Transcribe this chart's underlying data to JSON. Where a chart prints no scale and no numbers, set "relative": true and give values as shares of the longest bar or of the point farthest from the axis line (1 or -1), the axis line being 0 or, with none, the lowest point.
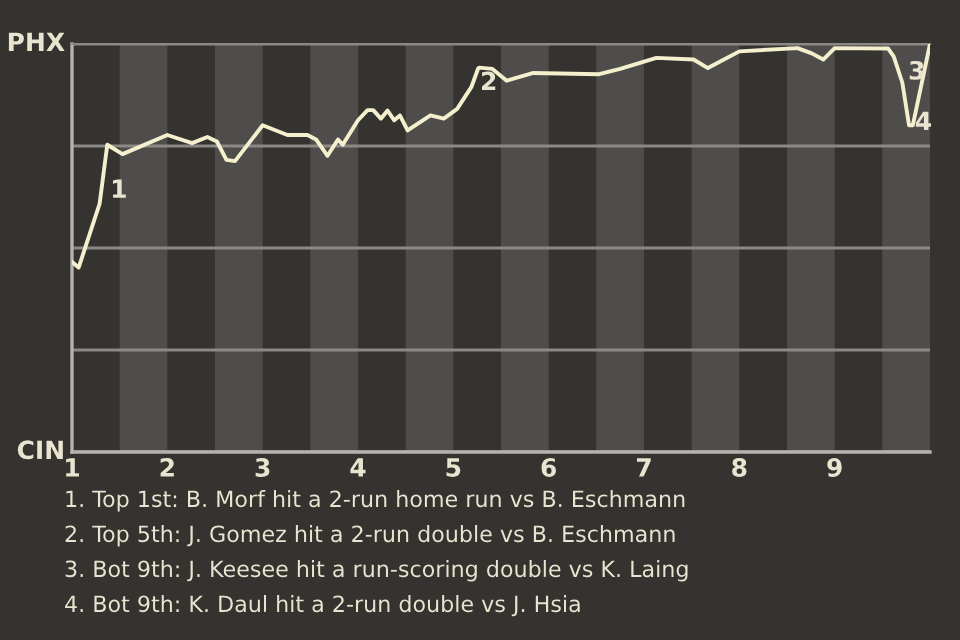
{
  "chart_data": {
    "type": "line",
    "x": [
      1.0,
      1.07,
      1.29,
      1.37,
      1.53,
      2.0,
      2.26,
      2.42,
      2.52,
      2.62,
      2.71,
      3.0,
      3.26,
      3.47,
      3.56,
      3.68,
      3.79,
      3.84,
      4.0,
      4.1,
      4.16,
      4.24,
      4.31,
      4.38,
      4.44,
      4.52,
      4.76,
      4.9,
      5.04,
      5.19,
      5.26,
      5.27,
      5.41,
      5.56,
      5.84,
      6.53,
      6.75,
      7.13,
      7.52,
      7.67,
      8.0,
      8.61,
      8.76,
      8.88,
      9.0,
      9.56,
      9.62,
      9.71,
      9.78,
      9.82,
      10.0
    ],
    "series": [
      {
        "color": "#f4efcc",
        "values": [
          0.466,
          0.452,
          0.609,
          0.753,
          0.73,
          0.777,
          0.757,
          0.772,
          0.761,
          0.716,
          0.713,
          0.801,
          0.777,
          0.777,
          0.766,
          0.726,
          0.766,
          0.753,
          0.813,
          0.838,
          0.838,
          0.817,
          0.837,
          0.813,
          0.825,
          0.788,
          0.825,
          0.817,
          0.841,
          0.895,
          0.94,
          0.942,
          0.939,
          0.91,
          0.929,
          0.926,
          0.939,
          0.966,
          0.962,
          0.941,
          0.982,
          0.99,
          0.977,
          0.962,
          0.99,
          0.989,
          0.969,
          0.905,
          0.801,
          0.801,
          1
        ]
      }
    ],
    "xlim": [
      1,
      10
    ],
    "relative": true,
    "xticks": [
      1,
      2,
      3,
      4,
      5,
      6,
      7,
      8,
      9
    ],
    "grid": "y",
    "marker": "none",
    "line_style": "solid",
    "bands": [
      {
        "axis": "x",
        "from": 1.5,
        "to": 2,
        "color": "#4e4d4b"
      },
      {
        "axis": "x",
        "from": 2.5,
        "to": 3,
        "color": "#4e4d4b"
      },
      {
        "axis": "x",
        "from": 3.5,
        "to": 4,
        "color": "#4e4d4b"
      },
      {
        "axis": "x",
        "from": 4.5,
        "to": 5,
        "color": "#4e4d4b"
      },
      {
        "axis": "x",
        "from": 5.5,
        "to": 6,
        "color": "#4e4d4b"
      },
      {
        "axis": "x",
        "from": 6.5,
        "to": 7,
        "color": "#4e4d4b"
      },
      {
        "axis": "x",
        "from": 7.5,
        "to": 8,
        "color": "#4e4d4b"
      },
      {
        "axis": "x",
        "from": 8.5,
        "to": 9,
        "color": "#4e4d4b"
      },
      {
        "axis": "x",
        "from": 9.5,
        "to": 10,
        "color": "#4e4d4b"
      }
    ],
    "annotations": [
      "PHX",
      "CIN",
      {
        "text": "1",
        "x": 1.4,
        "y": 0.64
      },
      {
        "text": "2",
        "x": 5.28,
        "y": 0.904
      },
      {
        "text": "3",
        "x": 9.77,
        "y": 0.93
      },
      {
        "text": "4",
        "x": 9.84,
        "y": 0.806
      },
      "1. Top 1st: B. Morf hit a 2-run home run vs B. Eschmann",
      "2. Top 5th: J. Gomez hit a 2-run double vs B. Eschmann",
      "3. Bot 9th: J. Keesee hit a run-scoring double vs K. Laing",
      "4. Bot 9th: K. Daul hit a 2-run double vs J. Hsia"
    ]
  }
}
